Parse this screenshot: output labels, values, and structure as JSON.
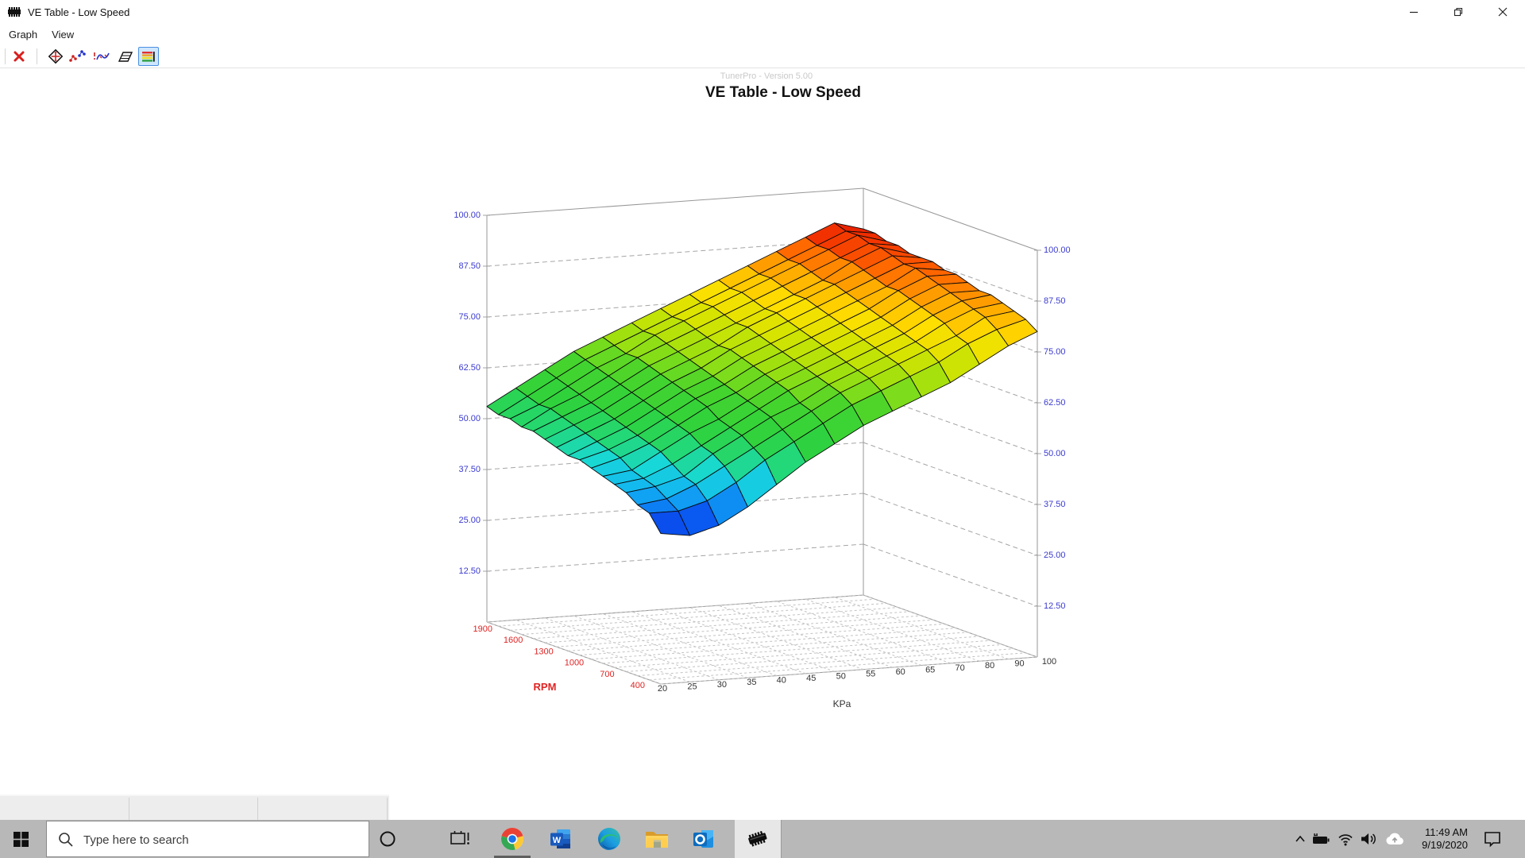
{
  "window": {
    "title": "VE Table - Low Speed"
  },
  "menu": {
    "items": [
      {
        "label": "Graph"
      },
      {
        "label": "View"
      }
    ]
  },
  "toolbar": {
    "buttons": [
      {
        "name": "close-graph"
      },
      {
        "name": "pan-view"
      },
      {
        "name": "show-points"
      },
      {
        "name": "show-trace"
      },
      {
        "name": "tilt-axes"
      },
      {
        "name": "color-bands",
        "selected": true
      }
    ]
  },
  "chart_data": {
    "type": "surface",
    "title": "VE Table - Low Speed",
    "watermark": "TunerPro - Version 5.00",
    "x_axis": {
      "label": "KPa",
      "columns": [
        20,
        25,
        30,
        35,
        40,
        45,
        50,
        55,
        60,
        65,
        70,
        80,
        90,
        100
      ]
    },
    "rpm_axis": {
      "label": "RPM",
      "rows": [
        400,
        500,
        600,
        700,
        800,
        900,
        1000,
        1100,
        1200,
        1300,
        1400,
        1500,
        1600,
        1700,
        1800,
        1900
      ],
      "tick_labels": [
        1900,
        1600,
        1300,
        1000,
        700,
        400
      ]
    },
    "value_axis": {
      "tick_labels": [
        "12.50",
        "25.00",
        "37.50",
        "50.00",
        "62.50",
        "75.00",
        "87.50",
        "100.00"
      ],
      "step": 12.5,
      "range": [
        0,
        100
      ]
    },
    "values": [
      [
        37,
        36,
        38,
        42,
        47,
        52,
        56,
        60,
        63,
        66,
        69,
        73,
        77,
        80
      ],
      [
        41,
        41,
        43,
        47,
        52,
        56,
        60,
        64,
        67,
        70,
        73,
        77,
        80,
        82
      ],
      [
        42,
        43,
        46,
        50,
        54,
        58,
        62,
        66,
        69,
        72,
        75,
        78,
        82,
        83
      ],
      [
        44,
        45,
        47,
        52,
        56,
        60,
        63,
        67,
        70,
        73,
        76,
        80,
        83,
        84
      ],
      [
        45,
        46,
        49,
        53,
        57,
        61,
        65,
        68,
        71,
        74,
        77,
        81,
        84,
        85
      ],
      [
        46,
        47,
        51,
        55,
        58,
        62,
        66,
        69,
        72,
        75,
        78,
        82,
        85,
        85
      ],
      [
        47,
        49,
        52,
        56,
        60,
        63,
        67,
        70,
        73,
        76,
        79,
        83,
        86,
        86
      ],
      [
        48,
        50,
        53,
        57,
        61,
        64,
        68,
        71,
        74,
        77,
        80,
        84,
        87,
        87
      ],
      [
        48,
        51,
        54,
        58,
        62,
        65,
        69,
        72,
        75,
        78,
        81,
        84,
        88,
        87
      ],
      [
        49,
        52,
        55,
        59,
        63,
        66,
        70,
        73,
        76,
        79,
        82,
        85,
        88,
        88
      ],
      [
        50,
        53,
        56,
        60,
        64,
        67,
        70,
        74,
        77,
        80,
        83,
        86,
        89,
        88
      ],
      [
        51,
        54,
        57,
        61,
        65,
        68,
        71,
        74,
        77,
        80,
        83,
        87,
        90,
        88
      ],
      [
        51,
        55,
        58,
        62,
        66,
        69,
        72,
        75,
        78,
        81,
        84,
        87,
        90,
        89
      ],
      [
        52,
        55,
        59,
        63,
        66,
        70,
        73,
        76,
        79,
        82,
        85,
        88,
        91,
        89
      ],
      [
        52,
        56,
        60,
        64,
        67,
        70,
        73,
        76,
        79,
        82,
        85,
        88,
        91,
        90
      ],
      [
        53,
        57,
        61,
        65,
        68,
        71,
        74,
        77,
        80,
        83,
        86,
        89,
        92,
        90
      ]
    ],
    "colors": {
      "value_label": "#3b3bd0",
      "rpm_label": "#e02424",
      "kpa_label": "#333333",
      "grid": "#a5a5a5",
      "floor_grid": "#c2c2c2",
      "mesh_stroke": "#0a0a0a",
      "watermark": "#c9c9c9",
      "colormap": [
        [
          0.0,
          "#0a2ae0"
        ],
        [
          0.08,
          "#0a66f5"
        ],
        [
          0.15,
          "#12b4f2"
        ],
        [
          0.22,
          "#18d8d8"
        ],
        [
          0.28,
          "#22d87a"
        ],
        [
          0.36,
          "#2ed23e"
        ],
        [
          0.48,
          "#46d42c"
        ],
        [
          0.58,
          "#9be011"
        ],
        [
          0.68,
          "#d8e400"
        ],
        [
          0.76,
          "#ffdf00"
        ],
        [
          0.84,
          "#ffae00"
        ],
        [
          0.91,
          "#ff6a00"
        ],
        [
          0.96,
          "#f43500"
        ],
        [
          1.0,
          "#dd0f00"
        ]
      ]
    }
  },
  "status_bar": {
    "sections": 3
  },
  "taskbar": {
    "search_placeholder": "Type here to search",
    "apps": [
      "task-view",
      "chrome",
      "word",
      "edge",
      "file-explorer",
      "outlook",
      "tunerpro"
    ],
    "tray": {
      "time": "11:49 AM",
      "date": "9/19/2020"
    }
  }
}
